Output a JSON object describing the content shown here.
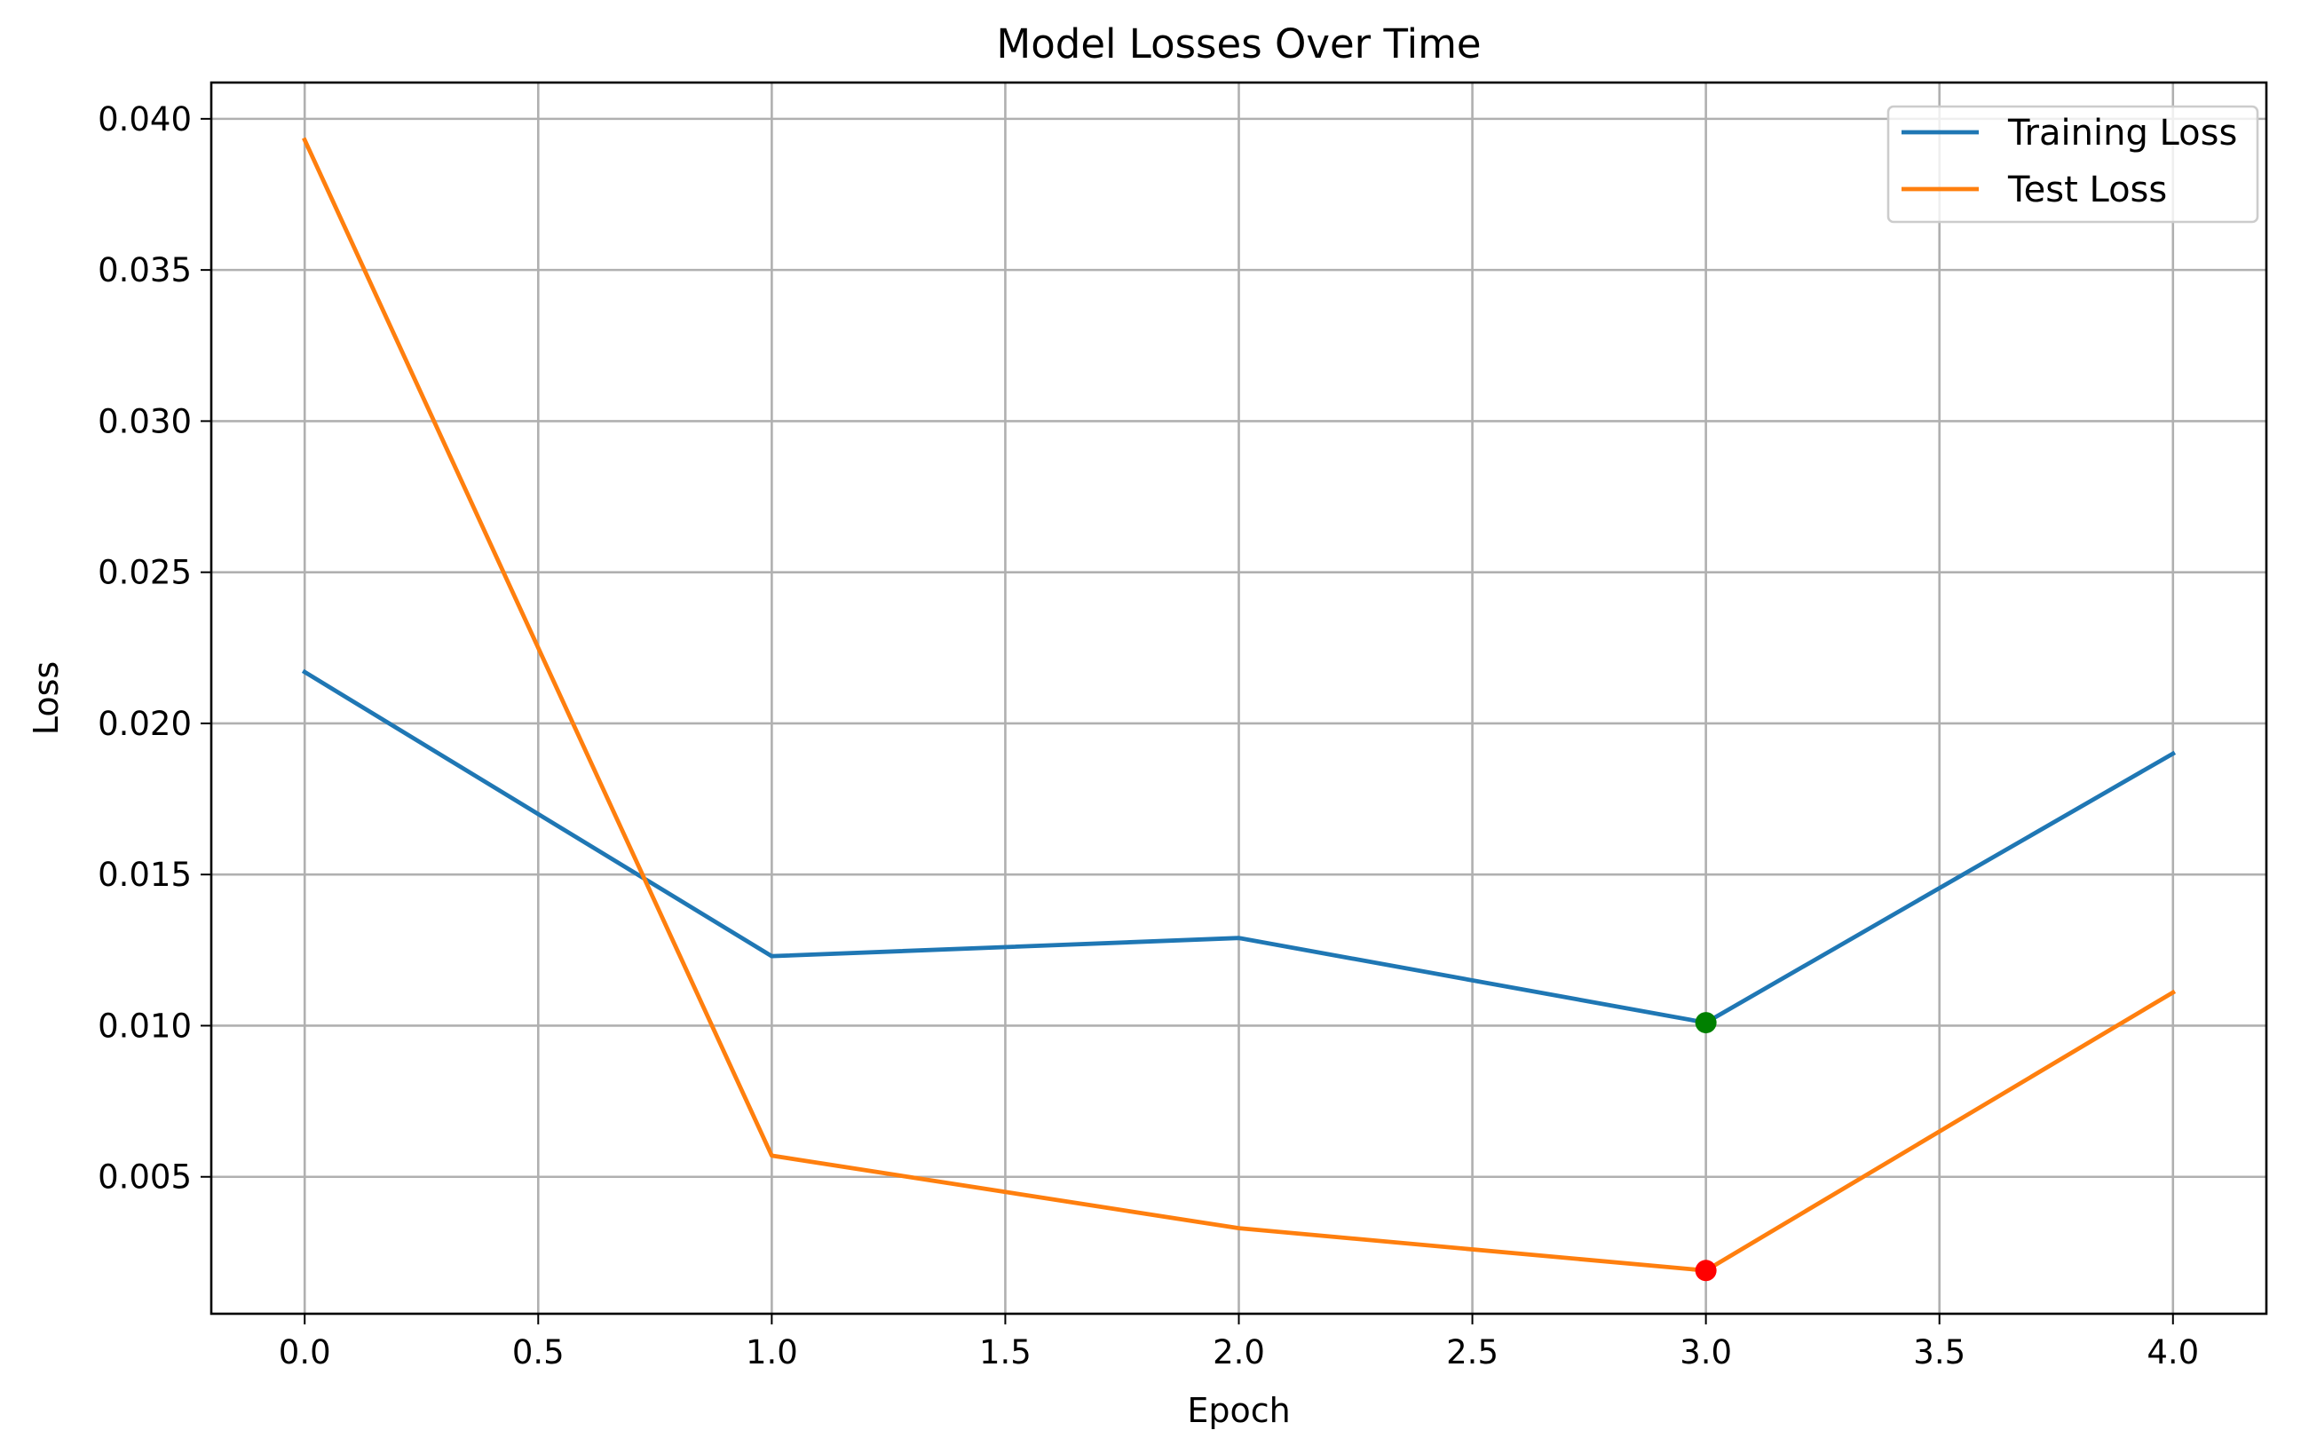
{
  "chart_data": {
    "type": "line",
    "title": "Model Losses Over Time",
    "xlabel": "Epoch",
    "ylabel": "Loss",
    "xlim": [
      -0.2,
      4.2
    ],
    "ylim": [
      0.00047,
      0.0412
    ],
    "x_ticks": [
      "0.0",
      "0.5",
      "1.0",
      "1.5",
      "2.0",
      "2.5",
      "3.0",
      "3.5",
      "4.0"
    ],
    "y_ticks": [
      "0.005",
      "0.010",
      "0.015",
      "0.020",
      "0.025",
      "0.030",
      "0.035",
      "0.040"
    ],
    "grid": true,
    "legend_position": "top-right",
    "x": [
      0,
      1,
      2,
      3,
      4
    ],
    "series": [
      {
        "name": "Training Loss",
        "color": "#1f77b4",
        "values": [
          0.0217,
          0.0123,
          0.0129,
          0.0101,
          0.019
        ]
      },
      {
        "name": "Test Loss",
        "color": "#ff7f0e",
        "values": [
          0.0393,
          0.0057,
          0.0033,
          0.0019,
          0.0111
        ]
      }
    ],
    "markers": [
      {
        "series": "Training Loss",
        "x": 3,
        "y": 0.0101,
        "color": "#008000"
      },
      {
        "series": "Test Loss",
        "x": 3,
        "y": 0.0019,
        "color": "#ff0000"
      }
    ]
  }
}
